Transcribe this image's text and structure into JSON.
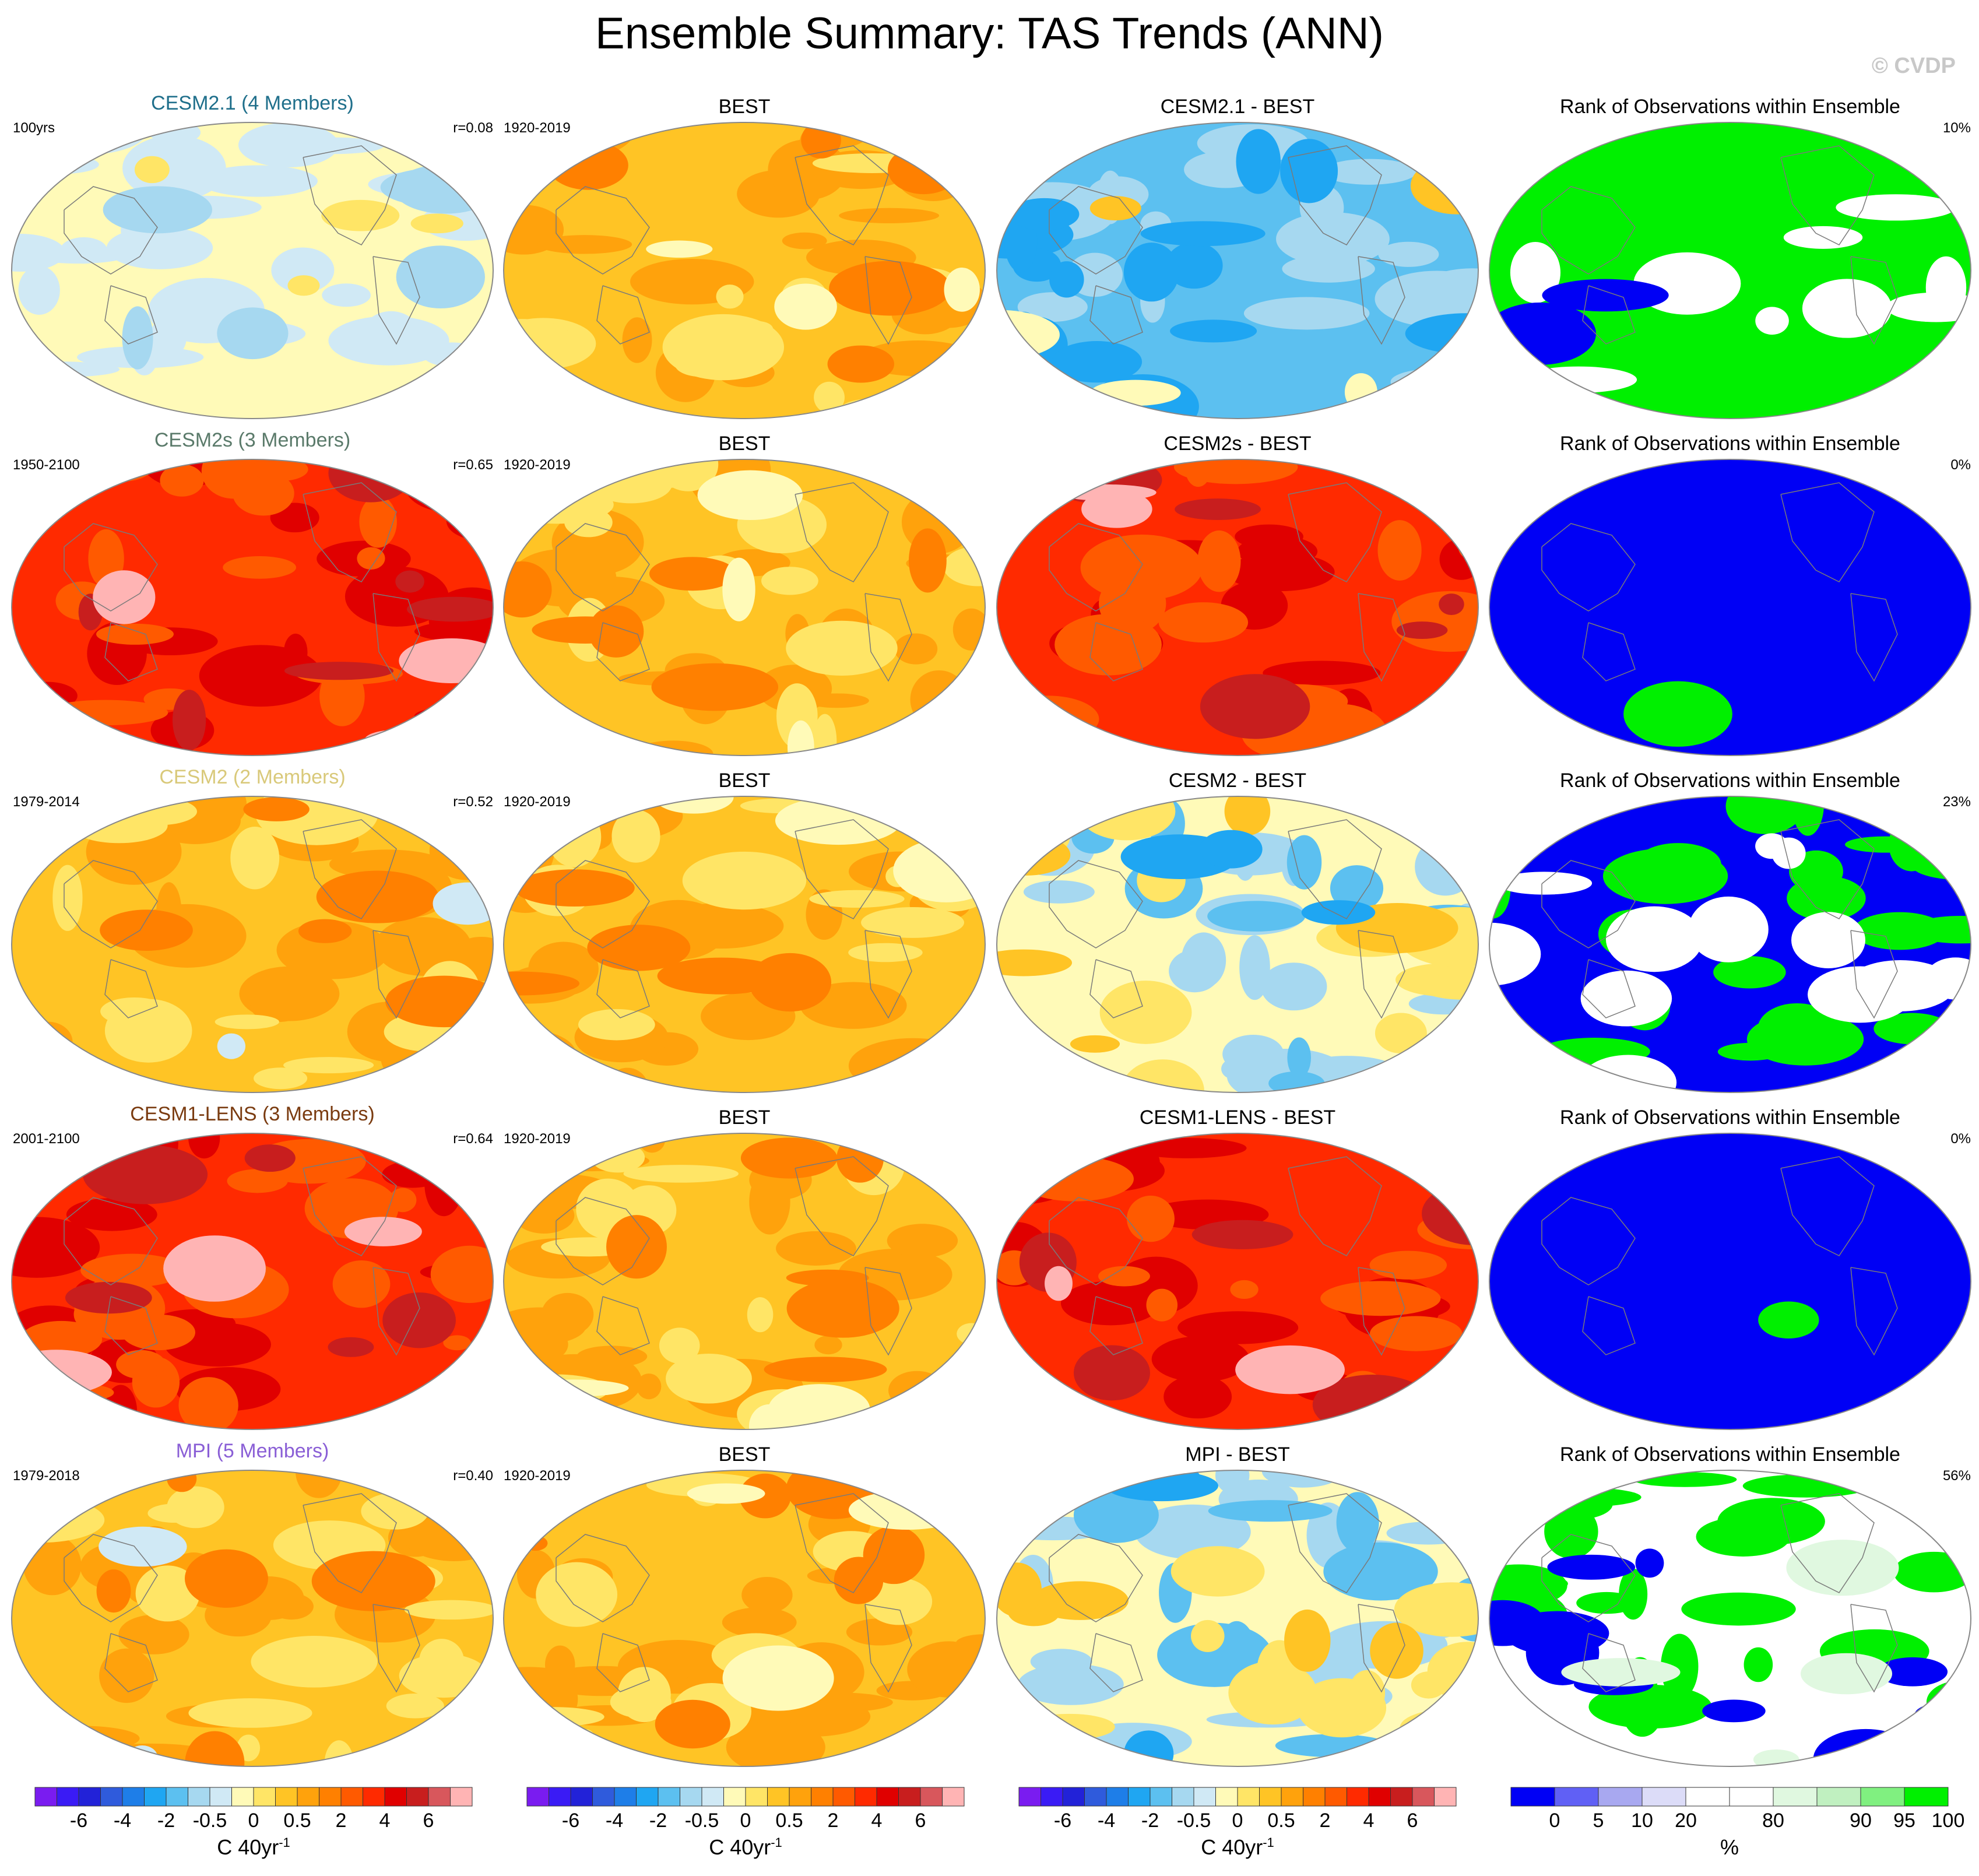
{
  "title": "Ensemble Summary: TAS Trends (ANN)",
  "credit": "© CVDP",
  "rows": [
    {
      "model": "CESM2.1 (4 Members)",
      "model_color": "#1f6f8b",
      "period": "100yrs",
      "r": "r=0.08",
      "obs_title": "BEST",
      "obs_period": "1920-2019",
      "diff_title": "CESM2.1 - BEST",
      "rank_title": "Rank of Observations within Ensemble",
      "rank_pct": "10%",
      "model_pattern": "cool",
      "diff_pattern": "cold",
      "rank_pattern": "green"
    },
    {
      "model": "CESM2s (3 Members)",
      "model_color": "#5a7a6a",
      "period": "1950-2100",
      "r": "r=0.65",
      "obs_title": "BEST",
      "obs_period": "1920-2019",
      "diff_title": "CESM2s - BEST",
      "rank_title": "Rank of Observations within Ensemble",
      "rank_pct": "0%",
      "model_pattern": "hot",
      "diff_pattern": "hot",
      "rank_pattern": "blue"
    },
    {
      "model": "CESM2 (2 Members)",
      "model_color": "#d9c97a",
      "period": "1979-2014",
      "r": "r=0.52",
      "obs_title": "BEST",
      "obs_period": "1920-2019",
      "diff_title": "CESM2 - BEST",
      "rank_title": "Rank of Observations within Ensemble",
      "rank_pct": "23%",
      "model_pattern": "warm",
      "diff_pattern": "mixed",
      "rank_pattern": "mixed-blue"
    },
    {
      "model": "CESM1-LENS (3 Members)",
      "model_color": "#7a3b10",
      "period": "2001-2100",
      "r": "r=0.64",
      "obs_title": "BEST",
      "obs_period": "1920-2019",
      "diff_title": "CESM1-LENS - BEST",
      "rank_title": "Rank of Observations within Ensemble",
      "rank_pct": "0%",
      "model_pattern": "hot",
      "diff_pattern": "hot",
      "rank_pattern": "blue"
    },
    {
      "model": "MPI (5 Members)",
      "model_color": "#8a5fd6",
      "period": "1979-2018",
      "r": "r=0.40",
      "obs_title": "BEST",
      "obs_period": "1920-2019",
      "diff_title": "MPI - BEST",
      "rank_title": "Rank of Observations within Ensemble",
      "rank_pct": "56%",
      "model_pattern": "warm",
      "diff_pattern": "mixed",
      "rank_pattern": "mixed-green"
    }
  ],
  "colorbar": {
    "colors": [
      "#7a1cf0",
      "#3a1bf5",
      "#2222d8",
      "#2f5bdc",
      "#1e7ee8",
      "#1fa6f2",
      "#5cc0f0",
      "#a6d8f0",
      "#d0e9f5",
      "#fffab8",
      "#ffe566",
      "#ffc425",
      "#ffa20c",
      "#ff8000",
      "#ff5a00",
      "#ff2a00",
      "#e00000",
      "#c81e1e",
      "#d8575c",
      "#ffb4b4"
    ],
    "labels": [
      "-6",
      "-4",
      "-2",
      "-0.5",
      "0",
      "0.5",
      "2",
      "4",
      "6"
    ],
    "unit": "C 40yr",
    "unit_sup": "-1"
  },
  "rank_colorbar": {
    "colors": [
      "#0000f5",
      "#6060f5",
      "#a8a8f0",
      "#dcdcf8",
      "#ffffff",
      "#ffffff",
      "#e0f8e0",
      "#c0f0c0",
      "#80f080",
      "#00f000"
    ],
    "labels": [
      "0",
      "5",
      "10",
      "20",
      "80",
      "90",
      "95",
      "100"
    ],
    "unit": "%"
  }
}
